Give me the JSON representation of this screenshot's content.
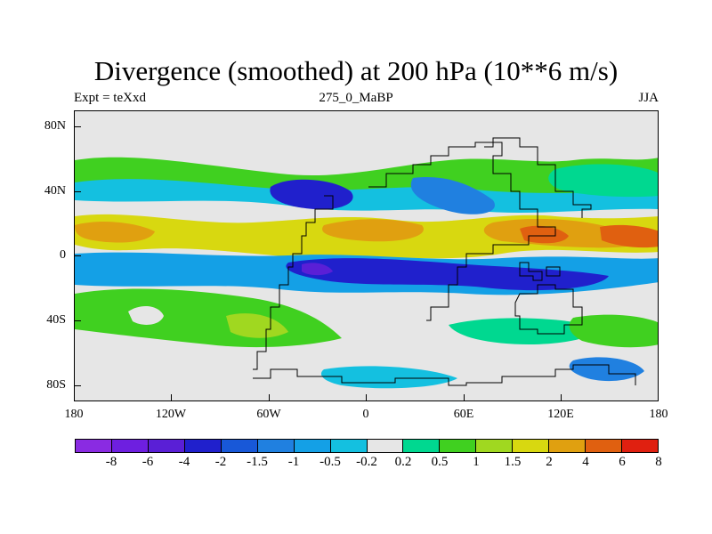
{
  "title": "Divergence (smoothed) at 200 hPa (10**6 m/s)",
  "subtitle_left": "Expt = teXxd",
  "subtitle_center": "275_0_MaBP",
  "subtitle_right": "JJA",
  "map": {
    "lat_range": [
      -90,
      90
    ],
    "lon_range": [
      -180,
      180
    ],
    "lat_ticks": [
      {
        "value": 80,
        "label": "80N"
      },
      {
        "value": 40,
        "label": "40N"
      },
      {
        "value": 0,
        "label": "0"
      },
      {
        "value": -40,
        "label": "40S"
      },
      {
        "value": -80,
        "label": "80S"
      }
    ],
    "lon_ticks": [
      {
        "value": -180,
        "label": "180"
      },
      {
        "value": -120,
        "label": "120W"
      },
      {
        "value": -60,
        "label": "60W"
      },
      {
        "value": 0,
        "label": "0"
      },
      {
        "value": 60,
        "label": "60E"
      },
      {
        "value": 120,
        "label": "120E"
      },
      {
        "value": 180,
        "label": "180"
      }
    ]
  },
  "colorbar": {
    "colors": [
      "#8a2be2",
      "#6e1fe0",
      "#5a1fd6",
      "#2020cc",
      "#1858d8",
      "#2080e0",
      "#14a0e6",
      "#14c0e0",
      "#e6e6e6",
      "#00d890",
      "#40d020",
      "#a0d820",
      "#d8d810",
      "#e0a010",
      "#e06010",
      "#e02010"
    ],
    "labels": [
      "-8",
      "-6",
      "-4",
      "-2",
      "-1.5",
      "-1",
      "-0.5",
      "-0.2",
      "0.2",
      "0.5",
      "1",
      "1.5",
      "2",
      "4",
      "6",
      "8"
    ]
  }
}
